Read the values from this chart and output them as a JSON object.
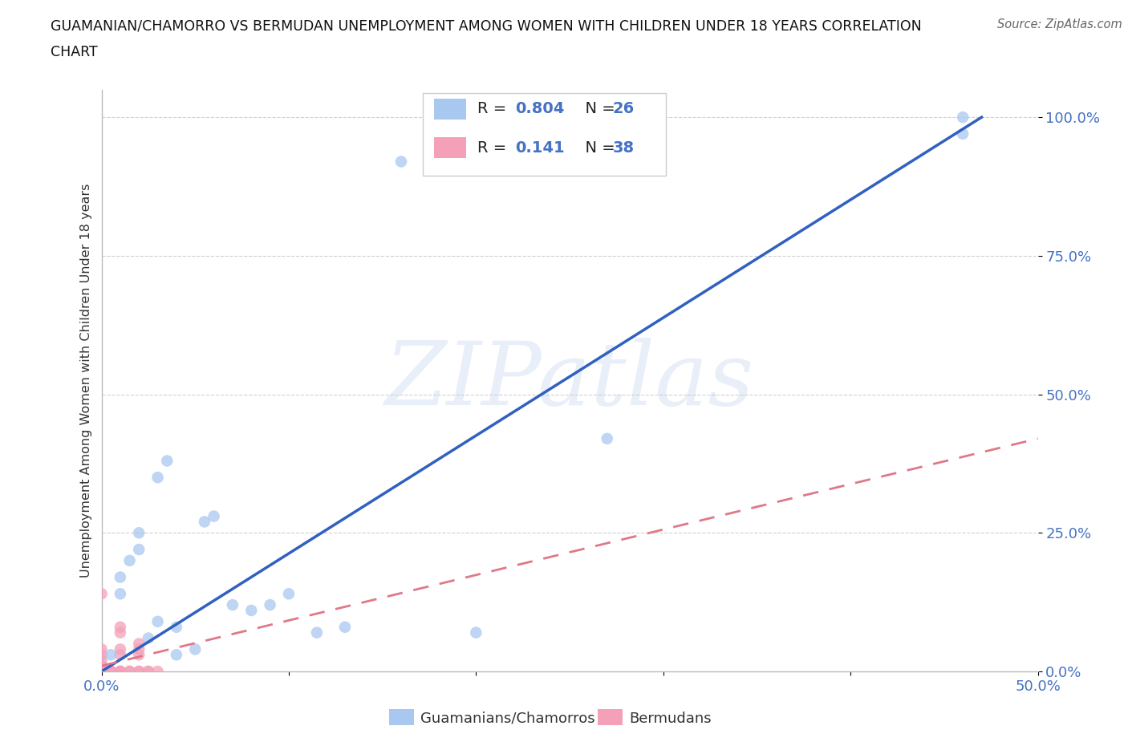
{
  "title_line1": "GUAMANIAN/CHAMORRO VS BERMUDAN UNEMPLOYMENT AMONG WOMEN WITH CHILDREN UNDER 18 YEARS CORRELATION",
  "title_line2": "CHART",
  "source": "Source: ZipAtlas.com",
  "ylabel": "Unemployment Among Women with Children Under 18 years",
  "xlim": [
    0.0,
    0.5
  ],
  "ylim": [
    0.0,
    1.05
  ],
  "xticks": [
    0.0,
    0.1,
    0.2,
    0.3,
    0.4,
    0.5
  ],
  "yticks": [
    0.0,
    0.25,
    0.5,
    0.75,
    1.0
  ],
  "ytick_labels": [
    "0.0%",
    "25.0%",
    "50.0%",
    "75.0%",
    "100.0%"
  ],
  "xtick_labels": [
    "0.0%",
    "",
    "",
    "",
    "",
    "50.0%"
  ],
  "watermark": "ZIPatlas",
  "legend_label_blue": "Guamanians/Chamorros",
  "legend_label_pink": "Bermudans",
  "blue_R": "0.804",
  "blue_N": "26",
  "pink_R": "0.141",
  "pink_N": "38",
  "blue_color": "#a8c8f0",
  "pink_color": "#f4a0b8",
  "blue_line_color": "#3060c0",
  "pink_line_color": "#e07888",
  "background_color": "#ffffff",
  "grid_color": "#cccccc",
  "blue_line_x0": 0.0,
  "blue_line_y0": 0.0,
  "blue_line_x1": 0.47,
  "blue_line_y1": 1.0,
  "pink_line_x0": 0.0,
  "pink_line_y0": 0.01,
  "pink_line_x1": 0.5,
  "pink_line_y1": 0.42,
  "blue_scatter_x": [
    0.005,
    0.01,
    0.01,
    0.015,
    0.02,
    0.02,
    0.025,
    0.03,
    0.03,
    0.035,
    0.04,
    0.04,
    0.05,
    0.055,
    0.06,
    0.07,
    0.08,
    0.09,
    0.1,
    0.115,
    0.13,
    0.16,
    0.2,
    0.27,
    0.46,
    0.46
  ],
  "blue_scatter_y": [
    0.03,
    0.14,
    0.17,
    0.2,
    0.22,
    0.25,
    0.06,
    0.09,
    0.35,
    0.38,
    0.03,
    0.08,
    0.04,
    0.27,
    0.28,
    0.12,
    0.11,
    0.12,
    0.14,
    0.07,
    0.08,
    0.92,
    0.07,
    0.42,
    1.0,
    0.97
  ],
  "pink_scatter_x": [
    0.0,
    0.0,
    0.0,
    0.0,
    0.0,
    0.0,
    0.0,
    0.0,
    0.0,
    0.0,
    0.0,
    0.0,
    0.0,
    0.0,
    0.0,
    0.0,
    0.0,
    0.0,
    0.005,
    0.005,
    0.005,
    0.01,
    0.01,
    0.01,
    0.01,
    0.01,
    0.01,
    0.01,
    0.015,
    0.015,
    0.02,
    0.02,
    0.02,
    0.02,
    0.02,
    0.025,
    0.025,
    0.03
  ],
  "pink_scatter_y": [
    0.0,
    0.0,
    0.0,
    0.0,
    0.0,
    0.0,
    0.0,
    0.0,
    0.0,
    0.0,
    0.0,
    0.0,
    0.01,
    0.01,
    0.02,
    0.03,
    0.04,
    0.14,
    0.0,
    0.0,
    0.0,
    0.0,
    0.0,
    0.0,
    0.03,
    0.04,
    0.07,
    0.08,
    0.0,
    0.0,
    0.0,
    0.0,
    0.03,
    0.04,
    0.05,
    0.0,
    0.0,
    0.0
  ]
}
